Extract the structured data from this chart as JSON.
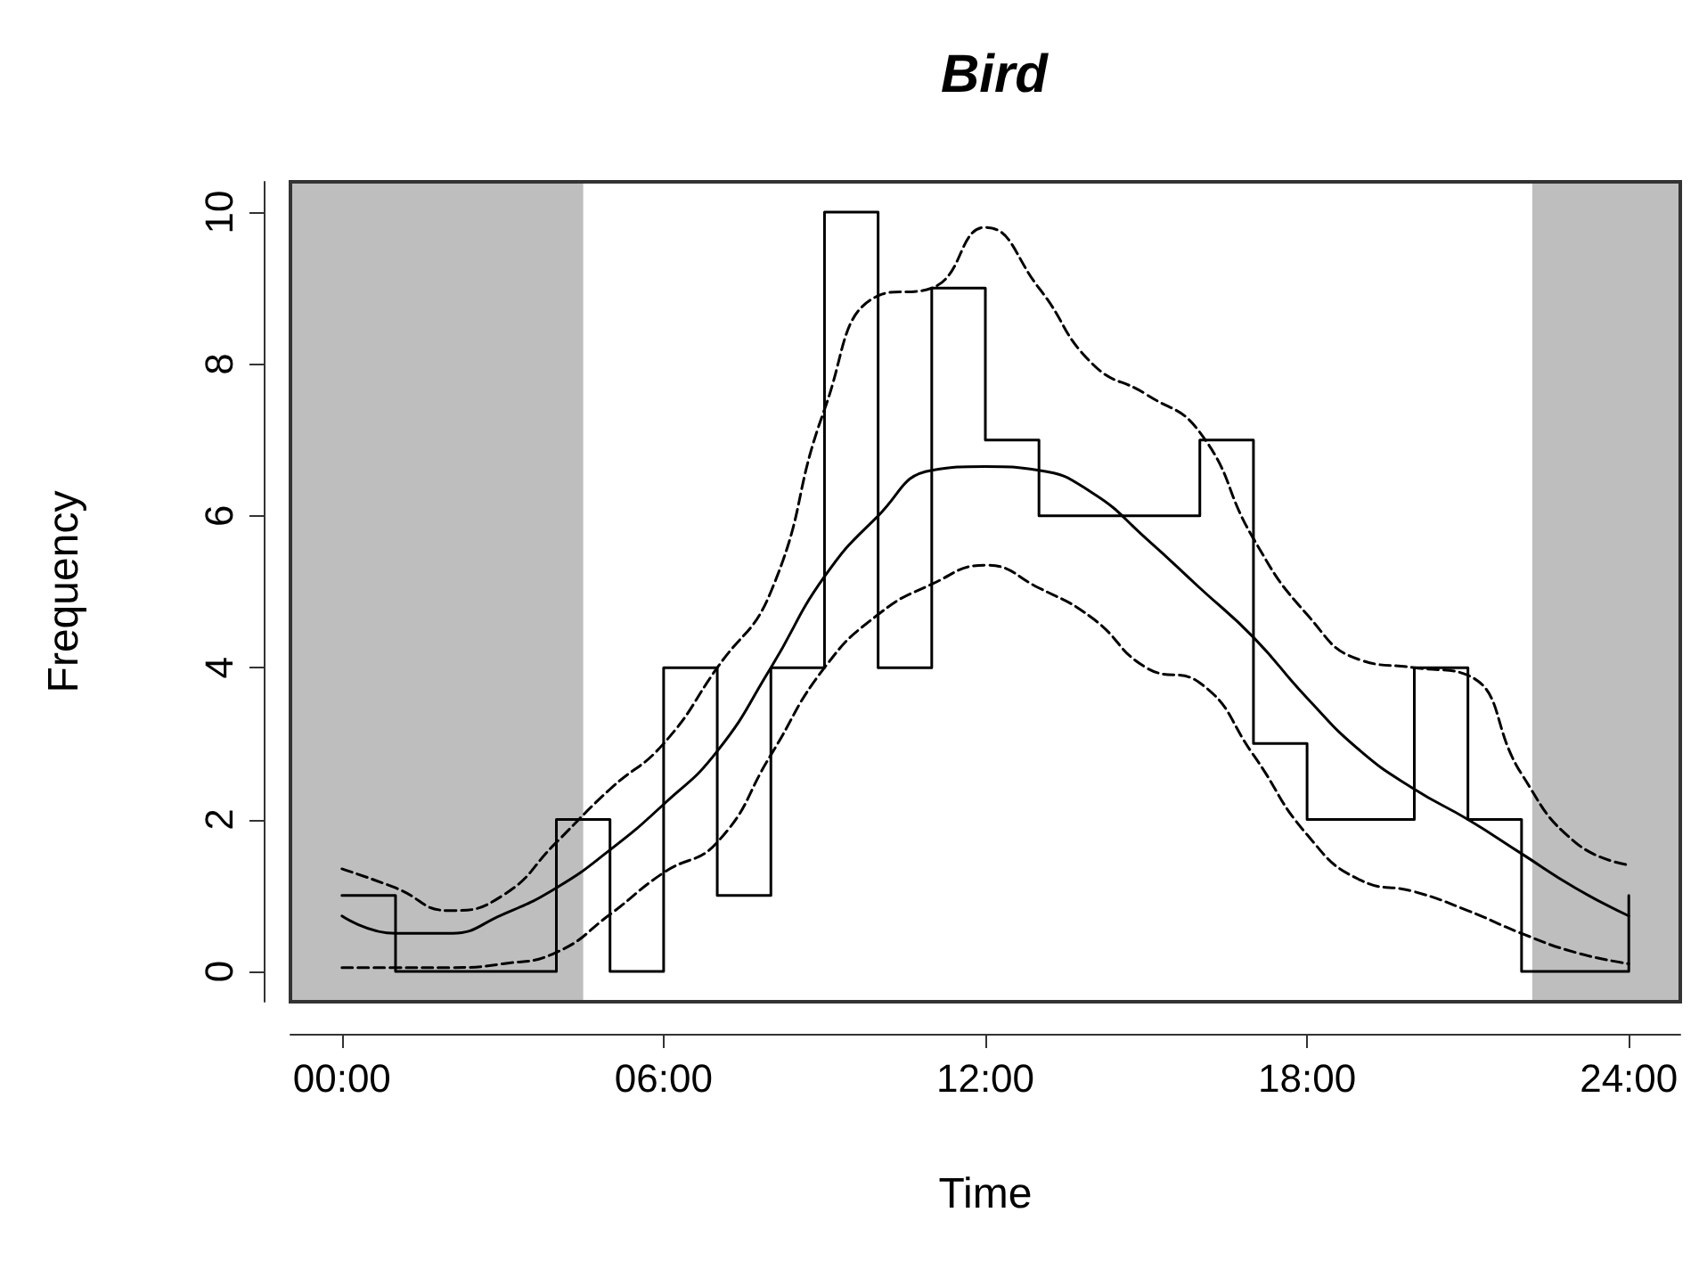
{
  "chart_data": {
    "type": "line",
    "title": "Bird",
    "xlabel": "Time",
    "ylabel": "Frequency",
    "xlim": [
      -0.96,
      24.96
    ],
    "ylim": [
      -0.4,
      10.4
    ],
    "xticks": [
      {
        "value": 0,
        "label": "00:00"
      },
      {
        "value": 6,
        "label": "06:00"
      },
      {
        "value": 12,
        "label": "12:00"
      },
      {
        "value": 18,
        "label": "18:00"
      },
      {
        "value": 24,
        "label": "24:00"
      }
    ],
    "yticks": [
      0,
      2,
      4,
      6,
      8,
      10
    ],
    "x": [
      0,
      1,
      2,
      3,
      4,
      5,
      6,
      7,
      8,
      9,
      10,
      11,
      12,
      13,
      14,
      15,
      16,
      17,
      18,
      19,
      20,
      21,
      22,
      23,
      24
    ],
    "series": [
      {
        "type": "step",
        "color": "#000000",
        "values": [
          1,
          0,
          0,
          0,
          2,
          0,
          4,
          1,
          4,
          10,
          4,
          9,
          7,
          6,
          6,
          6,
          7,
          3,
          2,
          2,
          4,
          2,
          0,
          0,
          1
        ]
      },
      {
        "color": "#000000",
        "line_style": "solid",
        "values": [
          0.73,
          0.5,
          0.5,
          0.75,
          1.1,
          1.6,
          2.2,
          2.9,
          4.0,
          5.2,
          6.0,
          6.6,
          6.65,
          6.6,
          6.3,
          5.7,
          5.05,
          4.4,
          3.6,
          2.9,
          2.4,
          2.0,
          1.55,
          1.1,
          0.73
        ]
      },
      {
        "color": "#000000",
        "line_style": "dashed",
        "values": [
          1.35,
          1.1,
          0.8,
          1.0,
          1.7,
          2.4,
          3.0,
          4.0,
          5.0,
          7.4,
          8.9,
          9.0,
          9.8,
          9.0,
          8.0,
          7.6,
          7.1,
          5.7,
          4.7,
          4.1,
          4.0,
          3.9,
          2.6,
          1.7,
          1.4
        ]
      },
      {
        "color": "#000000",
        "line_style": "dashed",
        "values": [
          0.05,
          0.05,
          0.05,
          0.1,
          0.25,
          0.75,
          1.3,
          1.7,
          2.85,
          4.0,
          4.7,
          5.1,
          5.35,
          5.05,
          4.65,
          4.0,
          3.8,
          2.85,
          1.8,
          1.2,
          1.05,
          0.8,
          0.5,
          0.25,
          0.1
        ]
      }
    ],
    "bands": [
      {
        "axis": "x",
        "from": -0.96,
        "to": 4.5,
        "color": "#bebebe"
      },
      {
        "axis": "x",
        "from": 22.2,
        "to": 24.96,
        "color": "#bebebe"
      }
    ],
    "marker": "none",
    "grid": false
  }
}
